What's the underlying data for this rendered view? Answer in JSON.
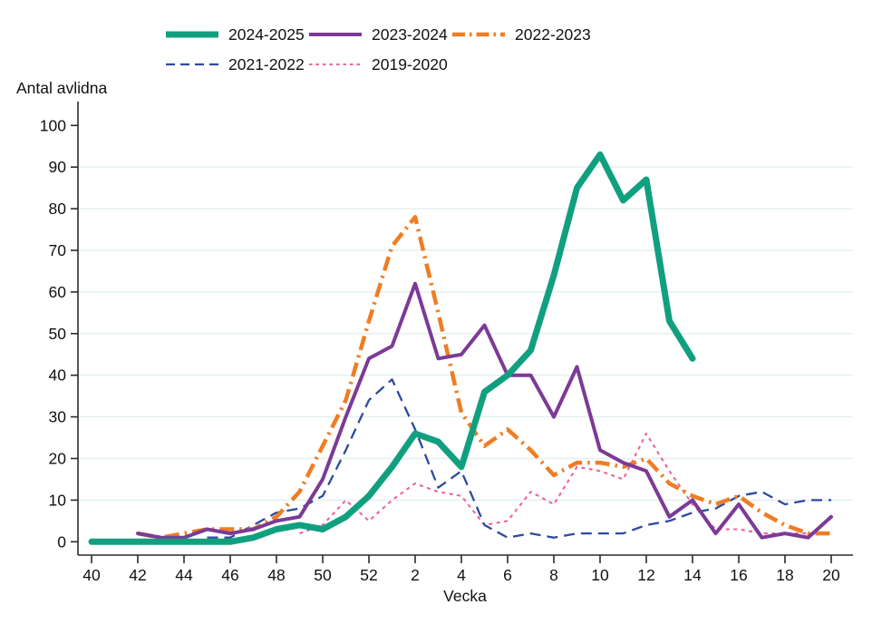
{
  "chart_data": {
    "type": "line",
    "title": "Antal avlidna",
    "ylabel": "Antal avlidna",
    "xlabel": "Vecka",
    "ylim": [
      0,
      100
    ],
    "y_tick_step": 10,
    "grid": "horizontal",
    "legend_position": "top",
    "x_week_labels": [
      "40",
      "41",
      "42",
      "43",
      "44",
      "45",
      "46",
      "47",
      "48",
      "49",
      "50",
      "51",
      "52",
      "1",
      "2",
      "3",
      "4",
      "5",
      "6",
      "7",
      "8",
      "9",
      "10",
      "11",
      "12",
      "13",
      "14",
      "15",
      "16",
      "17",
      "18",
      "19",
      "20"
    ],
    "x_tick_every": 2,
    "series": [
      {
        "name": "2024-2025",
        "color": "#11a07f",
        "style": "solid-thick",
        "values": [
          0,
          0,
          0,
          0,
          0,
          0,
          0,
          1,
          3,
          4,
          3,
          6,
          11,
          18,
          26,
          24,
          18,
          36,
          40,
          46,
          64,
          85,
          93,
          82,
          87,
          53,
          44,
          null,
          null,
          null,
          null,
          null,
          null
        ]
      },
      {
        "name": "2023-2024",
        "color": "#7c3a97",
        "style": "solid",
        "values": [
          null,
          null,
          2,
          1,
          1,
          3,
          2,
          3,
          5,
          6,
          15,
          30,
          44,
          47,
          62,
          44,
          45,
          52,
          40,
          40,
          30,
          42,
          22,
          19,
          17,
          6,
          10,
          2,
          9,
          1,
          2,
          1,
          6
        ]
      },
      {
        "name": "2022-2023",
        "color": "#f07d23",
        "style": "dash-dot",
        "values": [
          null,
          null,
          2,
          1,
          2,
          3,
          3,
          3,
          6,
          12,
          23,
          34,
          53,
          71,
          78,
          55,
          31,
          23,
          27,
          22,
          16,
          19,
          19,
          18,
          20,
          14,
          11,
          9,
          11,
          7,
          4,
          2,
          2
        ]
      },
      {
        "name": "2021-2022",
        "color": "#2c4b9f",
        "style": "dashed",
        "values": [
          null,
          null,
          null,
          null,
          null,
          1,
          1,
          4,
          7,
          8,
          11,
          22,
          34,
          39,
          27,
          13,
          17,
          4,
          1,
          2,
          1,
          2,
          2,
          2,
          4,
          5,
          7,
          8,
          11,
          12,
          9,
          10,
          10
        ]
      },
      {
        "name": "2019-2020",
        "color": "#f0619f",
        "style": "dotted",
        "values": [
          null,
          null,
          null,
          null,
          null,
          null,
          null,
          null,
          null,
          2,
          4,
          10,
          5,
          10,
          14,
          12,
          11,
          4,
          5,
          12,
          9,
          18,
          17,
          15,
          26,
          17,
          9,
          3,
          3,
          2,
          2,
          2,
          2
        ]
      }
    ]
  }
}
